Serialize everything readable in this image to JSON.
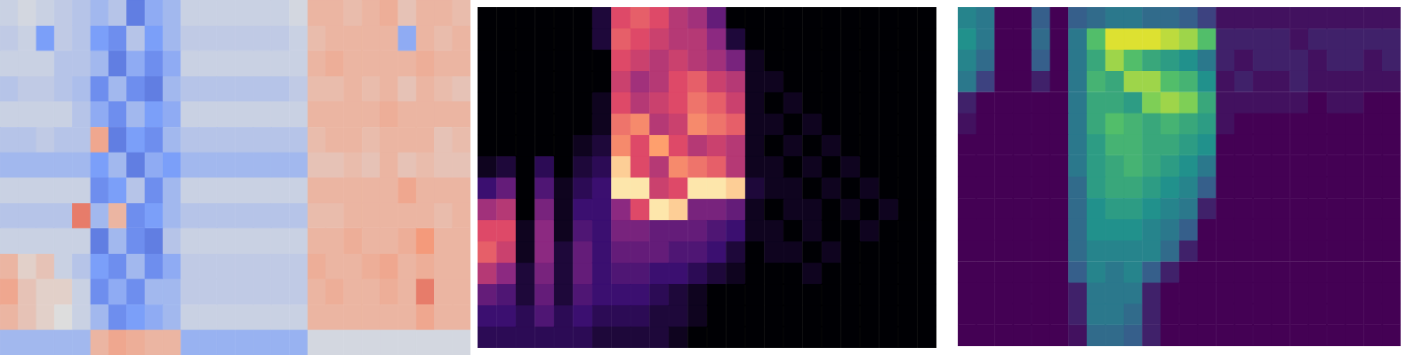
{
  "chart_data": [
    {
      "type": "heatmap",
      "color": "coolwarm",
      "color_range": [
        -1,
        1
      ],
      "tick_labels": false,
      "grid": false,
      "cells": [
        [
          -0.1,
          -0.05,
          -0.1,
          -0.15,
          -0.2,
          -0.3,
          -0.2,
          -0.7,
          -0.4,
          -0.3,
          -0.1,
          -0.1,
          -0.1,
          -0.1,
          -0.1,
          -0.1,
          -0.05,
          0.3,
          0.3,
          0.25,
          0.3,
          0.35,
          0.2,
          0.3,
          0.3,
          0.25
        ],
        [
          -0.15,
          -0.1,
          -0.5,
          -0.15,
          -0.2,
          -0.5,
          -0.6,
          -0.2,
          -0.5,
          -0.3,
          -0.15,
          -0.15,
          -0.15,
          -0.15,
          -0.15,
          -0.15,
          -0.1,
          0.25,
          0.3,
          0.3,
          0.3,
          0.3,
          -0.4,
          0.3,
          0.25,
          0.3
        ],
        [
          -0.1,
          -0.1,
          -0.1,
          -0.2,
          -0.2,
          -0.3,
          -0.7,
          -0.4,
          -0.6,
          -0.4,
          -0.1,
          -0.1,
          -0.1,
          -0.1,
          -0.1,
          -0.1,
          -0.1,
          0.3,
          0.35,
          0.3,
          0.3,
          0.3,
          0.3,
          0.35,
          0.3,
          0.3
        ],
        [
          -0.2,
          -0.15,
          -0.15,
          -0.2,
          -0.25,
          -0.6,
          -0.3,
          -0.6,
          -0.7,
          -0.3,
          -0.2,
          -0.2,
          -0.2,
          -0.2,
          -0.2,
          -0.2,
          -0.15,
          0.25,
          0.25,
          0.3,
          0.25,
          0.3,
          0.2,
          0.3,
          0.25,
          0.2
        ],
        [
          -0.1,
          -0.1,
          -0.1,
          -0.1,
          -0.2,
          -0.4,
          -0.6,
          -0.3,
          -0.5,
          -0.4,
          -0.1,
          -0.1,
          -0.1,
          -0.1,
          -0.1,
          -0.1,
          -0.1,
          0.3,
          0.3,
          0.3,
          0.3,
          0.35,
          0.3,
          0.3,
          0.3,
          0.3
        ],
        [
          -0.2,
          -0.2,
          -0.15,
          -0.2,
          -0.2,
          0.4,
          -0.7,
          -0.5,
          -0.6,
          -0.3,
          -0.2,
          -0.2,
          -0.2,
          -0.2,
          -0.2,
          -0.2,
          -0.2,
          0.25,
          0.3,
          0.3,
          0.25,
          0.3,
          0.3,
          0.3,
          0.2,
          0.25
        ],
        [
          -0.3,
          -0.3,
          -0.3,
          -0.3,
          -0.3,
          -0.5,
          -0.3,
          -0.7,
          -0.4,
          -0.5,
          -0.3,
          -0.3,
          -0.3,
          -0.3,
          -0.3,
          -0.3,
          -0.3,
          0.2,
          0.2,
          0.25,
          0.2,
          0.3,
          0.2,
          0.25,
          0.2,
          0.2
        ],
        [
          -0.1,
          -0.1,
          -0.1,
          -0.1,
          -0.1,
          -0.6,
          -0.5,
          -0.2,
          -0.6,
          -0.3,
          -0.1,
          -0.1,
          -0.1,
          -0.1,
          -0.1,
          -0.1,
          -0.1,
          0.3,
          0.3,
          0.3,
          0.3,
          0.3,
          0.4,
          0.3,
          0.3,
          0.3
        ],
        [
          -0.2,
          -0.2,
          -0.2,
          -0.2,
          0.6,
          -0.3,
          0.3,
          -0.6,
          -0.5,
          -0.3,
          -0.2,
          -0.2,
          -0.2,
          -0.2,
          -0.2,
          -0.2,
          -0.2,
          0.25,
          0.25,
          0.3,
          0.3,
          0.3,
          0.3,
          0.3,
          0.25,
          0.3
        ],
        [
          -0.1,
          -0.1,
          -0.1,
          -0.1,
          -0.1,
          -0.7,
          -0.3,
          -0.6,
          -0.7,
          -0.2,
          -0.1,
          -0.1,
          -0.1,
          -0.1,
          -0.1,
          -0.1,
          -0.1,
          0.3,
          0.3,
          0.35,
          0.3,
          0.3,
          0.35,
          0.5,
          0.3,
          0.3
        ],
        [
          0.3,
          0.1,
          0.2,
          -0.1,
          -0.2,
          -0.5,
          -0.6,
          -0.3,
          -0.6,
          -0.4,
          -0.15,
          -0.15,
          -0.15,
          -0.15,
          -0.15,
          -0.15,
          -0.15,
          0.35,
          0.3,
          0.3,
          0.35,
          0.4,
          0.3,
          0.35,
          0.3,
          0.3
        ],
        [
          0.4,
          0.2,
          0.1,
          0.1,
          -0.1,
          -0.6,
          -0.4,
          -0.6,
          -0.3,
          -0.3,
          -0.15,
          -0.15,
          -0.15,
          -0.15,
          -0.15,
          -0.15,
          -0.15,
          0.3,
          0.35,
          0.3,
          0.3,
          0.35,
          0.3,
          0.6,
          0.3,
          0.3
        ],
        [
          0.3,
          0.2,
          0.1,
          0.0,
          -0.1,
          -0.3,
          -0.6,
          -0.5,
          -0.4,
          -0.3,
          -0.1,
          -0.1,
          -0.1,
          -0.1,
          -0.1,
          -0.1,
          -0.1,
          0.3,
          0.3,
          0.3,
          0.3,
          0.3,
          0.3,
          0.4,
          0.3,
          0.3
        ],
        [
          -0.3,
          -0.3,
          -0.3,
          -0.3,
          -0.3,
          0.3,
          0.4,
          0.35,
          0.3,
          0.3,
          -0.35,
          -0.35,
          -0.35,
          -0.35,
          -0.35,
          -0.35,
          -0.35,
          -0.05,
          -0.05,
          -0.05,
          -0.05,
          -0.05,
          -0.05,
          -0.05,
          -0.05,
          -0.05
        ]
      ]
    },
    {
      "type": "heatmap",
      "color": "magma",
      "color_range": [
        0,
        1
      ],
      "tick_labels": false,
      "grid": false,
      "cells": [
        [
          0,
          0,
          0,
          0,
          0,
          0,
          0.1,
          0.6,
          0.65,
          0.6,
          0.5,
          0.45,
          0.3,
          0,
          0,
          0,
          0,
          0,
          0,
          0,
          0,
          0,
          0,
          0
        ],
        [
          0,
          0,
          0,
          0,
          0,
          0,
          0.1,
          0.65,
          0.6,
          0.55,
          0.5,
          0.5,
          0.4,
          0.1,
          0,
          0,
          0,
          0,
          0,
          0,
          0,
          0,
          0,
          0
        ],
        [
          0,
          0,
          0,
          0,
          0,
          0,
          0,
          0.6,
          0.55,
          0.5,
          0.55,
          0.5,
          0.45,
          0.35,
          0.05,
          0,
          0,
          0,
          0,
          0,
          0,
          0,
          0,
          0
        ],
        [
          0,
          0,
          0,
          0,
          0,
          0,
          0,
          0.55,
          0.45,
          0.5,
          0.6,
          0.65,
          0.55,
          0.5,
          0.05,
          0.05,
          0,
          0,
          0,
          0,
          0,
          0,
          0,
          0
        ],
        [
          0,
          0,
          0,
          0,
          0,
          0,
          0.05,
          0.6,
          0.5,
          0.55,
          0.6,
          0.7,
          0.65,
          0.55,
          0.05,
          0,
          0.05,
          0,
          0,
          0,
          0,
          0,
          0,
          0
        ],
        [
          0,
          0,
          0,
          0,
          0,
          0,
          0.05,
          0.7,
          0.75,
          0.5,
          0.55,
          0.75,
          0.7,
          0.65,
          0.05,
          0.05,
          0,
          0.05,
          0,
          0,
          0,
          0,
          0,
          0
        ],
        [
          0,
          0,
          0,
          0,
          0,
          0.05,
          0.1,
          0.75,
          0.6,
          0.8,
          0.6,
          0.5,
          0.55,
          0.5,
          0.05,
          0,
          0.05,
          0,
          0.05,
          0,
          0,
          0,
          0,
          0
        ],
        [
          0.05,
          0.1,
          0,
          0.15,
          0,
          0.1,
          0.15,
          0.9,
          0.6,
          0.5,
          0.75,
          0.7,
          0.65,
          0.5,
          0.05,
          0.05,
          0,
          0.05,
          0,
          0.05,
          0,
          0,
          0,
          0
        ],
        [
          0.2,
          0.3,
          0,
          0.25,
          0.05,
          0.15,
          0.2,
          0.95,
          0.95,
          0.55,
          0.6,
          0.95,
          0.95,
          0.9,
          0.1,
          0.05,
          0.05,
          0,
          0.05,
          0,
          0.05,
          0,
          0,
          0
        ],
        [
          0.45,
          0.5,
          0,
          0.35,
          0.05,
          0.2,
          0.2,
          0.4,
          0.6,
          0.95,
          0.9,
          0.35,
          0.35,
          0.3,
          0.05,
          0,
          0.05,
          0.05,
          0,
          0.05,
          0,
          0.05,
          0,
          0
        ],
        [
          0.6,
          0.6,
          0.05,
          0.4,
          0.05,
          0.25,
          0.2,
          0.35,
          0.35,
          0.3,
          0.3,
          0.3,
          0.25,
          0.2,
          0.05,
          0.05,
          0,
          0.05,
          0,
          0,
          0.05,
          0,
          0,
          0
        ],
        [
          0.65,
          0.55,
          0.05,
          0.4,
          0.1,
          0.3,
          0.2,
          0.3,
          0.3,
          0.3,
          0.25,
          0.25,
          0.2,
          0.1,
          0,
          0.05,
          0.05,
          0,
          0.05,
          0,
          0,
          0,
          0,
          0
        ],
        [
          0.5,
          0.4,
          0.1,
          0.35,
          0.1,
          0.3,
          0.2,
          0.25,
          0.25,
          0.2,
          0.2,
          0.15,
          0.1,
          0.05,
          0,
          0,
          0,
          0.05,
          0,
          0,
          0,
          0,
          0,
          0
        ],
        [
          0.3,
          0.25,
          0.1,
          0.3,
          0.1,
          0.25,
          0.2,
          0.2,
          0.2,
          0.15,
          0.1,
          0.05,
          0,
          0,
          0,
          0,
          0,
          0,
          0,
          0,
          0,
          0,
          0,
          0
        ],
        [
          0.2,
          0.2,
          0.15,
          0.25,
          0.15,
          0.2,
          0.15,
          0.15,
          0.15,
          0.1,
          0.1,
          0.05,
          0,
          0,
          0,
          0,
          0,
          0,
          0,
          0,
          0,
          0,
          0,
          0
        ],
        [
          0.15,
          0.15,
          0.15,
          0.15,
          0.15,
          0.15,
          0.1,
          0.1,
          0.1,
          0.1,
          0.05,
          0,
          0,
          0,
          0,
          0,
          0,
          0,
          0,
          0,
          0,
          0,
          0,
          0
        ]
      ]
    },
    {
      "type": "heatmap",
      "color": "viridis",
      "color_range": [
        0,
        1
      ],
      "tick_labels": false,
      "grid": false,
      "cells": [
        [
          0.45,
          0.4,
          0,
          0,
          0.3,
          0,
          0.3,
          0.35,
          0.4,
          0.4,
          0.35,
          0.35,
          0.3,
          0.2,
          0.05,
          0.05,
          0.05,
          0.05,
          0.05,
          0.05,
          0.05,
          0.05,
          0.05,
          0.05
        ],
        [
          0.5,
          0.4,
          0,
          0,
          0.35,
          0,
          0.4,
          0.7,
          0.95,
          0.95,
          0.95,
          0.9,
          0.85,
          0.7,
          0.1,
          0.1,
          0.1,
          0.1,
          0.05,
          0.1,
          0.1,
          0.1,
          0.1,
          0.1
        ],
        [
          0.45,
          0.35,
          0,
          0,
          0.3,
          0,
          0.4,
          0.6,
          0.85,
          0.7,
          0.6,
          0.55,
          0.5,
          0.4,
          0.1,
          0.05,
          0.1,
          0.1,
          0.1,
          0.05,
          0.1,
          0.1,
          0.05,
          0.1
        ],
        [
          0.4,
          0.2,
          0,
          0,
          0.1,
          0,
          0.4,
          0.65,
          0.6,
          0.85,
          0.85,
          0.7,
          0.65,
          0.5,
          0.05,
          0.1,
          0.05,
          0.05,
          0.1,
          0.05,
          0.05,
          0.05,
          0.05,
          0.05
        ],
        [
          0.1,
          0,
          0,
          0,
          0,
          0,
          0.4,
          0.6,
          0.6,
          0.55,
          0.8,
          0.85,
          0.8,
          0.6,
          0.05,
          0.05,
          0.05,
          0.05,
          0.05,
          0,
          0.05,
          0.05,
          0,
          0
        ],
        [
          0.05,
          0,
          0,
          0,
          0,
          0,
          0.4,
          0.6,
          0.7,
          0.65,
          0.6,
          0.65,
          0.6,
          0.55,
          0.05,
          0,
          0,
          0,
          0,
          0,
          0,
          0,
          0,
          0
        ],
        [
          0,
          0,
          0,
          0,
          0,
          0,
          0.4,
          0.55,
          0.65,
          0.65,
          0.6,
          0.6,
          0.55,
          0.5,
          0,
          0,
          0,
          0,
          0,
          0,
          0,
          0,
          0,
          0
        ],
        [
          0,
          0,
          0,
          0,
          0,
          0,
          0.4,
          0.55,
          0.6,
          0.65,
          0.6,
          0.55,
          0.5,
          0.4,
          0,
          0,
          0,
          0,
          0,
          0,
          0,
          0,
          0,
          0
        ],
        [
          0,
          0,
          0,
          0,
          0,
          0,
          0.35,
          0.55,
          0.6,
          0.6,
          0.55,
          0.5,
          0.45,
          0.3,
          0,
          0,
          0,
          0,
          0,
          0,
          0,
          0,
          0,
          0
        ],
        [
          0,
          0,
          0,
          0,
          0,
          0,
          0.35,
          0.5,
          0.55,
          0.55,
          0.5,
          0.45,
          0.4,
          0.1,
          0,
          0,
          0,
          0,
          0,
          0,
          0,
          0,
          0,
          0
        ],
        [
          0,
          0,
          0,
          0,
          0,
          0,
          0.35,
          0.5,
          0.5,
          0.5,
          0.45,
          0.4,
          0.3,
          0,
          0,
          0,
          0,
          0,
          0,
          0,
          0,
          0,
          0,
          0
        ],
        [
          0,
          0,
          0,
          0,
          0,
          0,
          0.35,
          0.45,
          0.45,
          0.45,
          0.45,
          0.35,
          0.1,
          0,
          0,
          0,
          0,
          0,
          0,
          0,
          0,
          0,
          0,
          0
        ],
        [
          0,
          0,
          0,
          0,
          0,
          0,
          0.3,
          0.45,
          0.4,
          0.45,
          0.3,
          0.1,
          0,
          0,
          0,
          0,
          0,
          0,
          0,
          0,
          0,
          0,
          0,
          0
        ],
        [
          0,
          0,
          0,
          0,
          0,
          0,
          0.1,
          0.4,
          0.4,
          0.4,
          0.1,
          0,
          0,
          0,
          0,
          0,
          0,
          0,
          0,
          0,
          0,
          0,
          0,
          0
        ],
        [
          0,
          0,
          0,
          0,
          0,
          0,
          0.1,
          0.4,
          0.4,
          0.35,
          0.1,
          0,
          0,
          0,
          0,
          0,
          0,
          0,
          0,
          0,
          0,
          0,
          0,
          0
        ],
        [
          0,
          0,
          0,
          0,
          0,
          0,
          0.05,
          0.35,
          0.35,
          0.3,
          0.1,
          0,
          0,
          0,
          0,
          0,
          0,
          0,
          0,
          0,
          0,
          0,
          0,
          0
        ]
      ]
    }
  ]
}
